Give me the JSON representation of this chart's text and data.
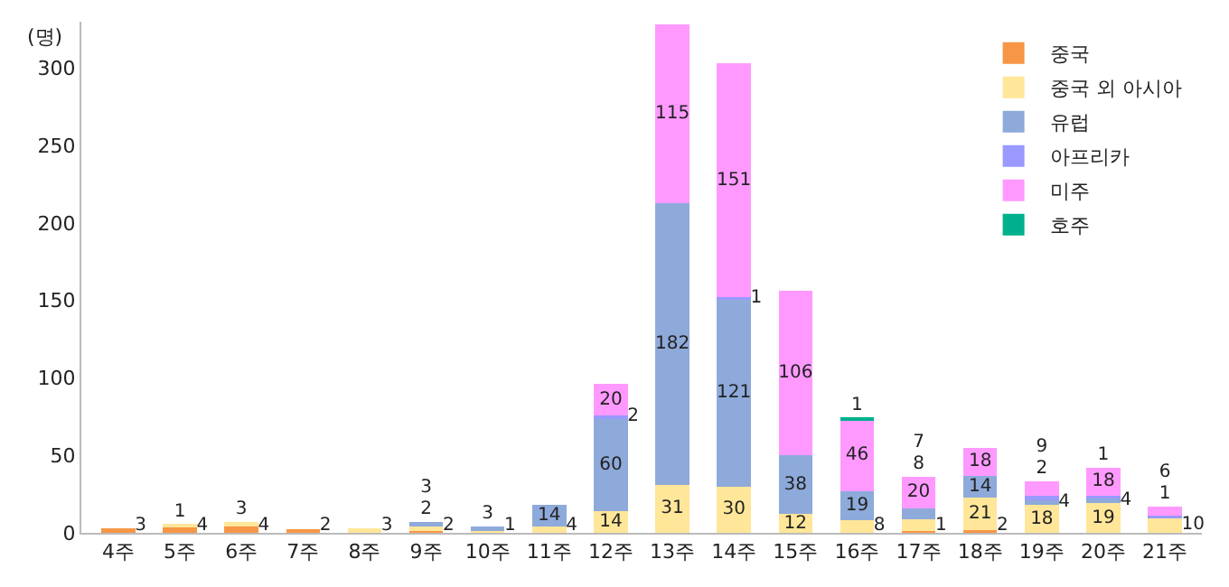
{
  "chart_data": {
    "type": "bar",
    "stacked": true,
    "ylabel": "(명)",
    "categories": [
      "4주",
      "5주",
      "6주",
      "7주",
      "8주",
      "9주",
      "10주",
      "11주",
      "12주",
      "13주",
      "14주",
      "15주",
      "16주",
      "17주",
      "18주",
      "19주",
      "20주",
      "21주"
    ],
    "series": [
      {
        "name": "중국",
        "color": "#f79646",
        "values": [
          3,
          4,
          4,
          2,
          null,
          2,
          null,
          null,
          null,
          null,
          null,
          null,
          null,
          1,
          2,
          null,
          null,
          null
        ]
      },
      {
        "name": "중국 외 아시아",
        "color": "#ffe699",
        "values": [
          null,
          1,
          3,
          null,
          3,
          2,
          1,
          4,
          14,
          31,
          30,
          12,
          8,
          8,
          21,
          18,
          19,
          10
        ]
      },
      {
        "name": "유럽",
        "color": "#8eaadb",
        "values": [
          null,
          null,
          null,
          null,
          null,
          3,
          3,
          14,
          60,
          182,
          121,
          38,
          19,
          7,
          14,
          4,
          4,
          null
        ]
      },
      {
        "name": "아프리카",
        "color": "#9999ff",
        "values": [
          null,
          null,
          null,
          null,
          null,
          null,
          null,
          null,
          2,
          null,
          1,
          null,
          null,
          null,
          null,
          2,
          1,
          1
        ]
      },
      {
        "name": "미주",
        "color": "#ff99ff",
        "values": [
          null,
          null,
          null,
          null,
          null,
          null,
          null,
          null,
          20,
          115,
          151,
          106,
          46,
          20,
          18,
          9,
          18,
          6
        ]
      },
      {
        "name": "호주",
        "color": "#00b08c",
        "values": [
          null,
          null,
          null,
          null,
          null,
          null,
          null,
          null,
          null,
          null,
          null,
          null,
          1,
          null,
          null,
          null,
          null,
          null
        ]
      }
    ],
    "ylim": [
      0,
      330
    ],
    "yticks": [
      0,
      50,
      100,
      150,
      200,
      250,
      300
    ],
    "grid": false,
    "legend": "top right",
    "data_labels": true
  }
}
